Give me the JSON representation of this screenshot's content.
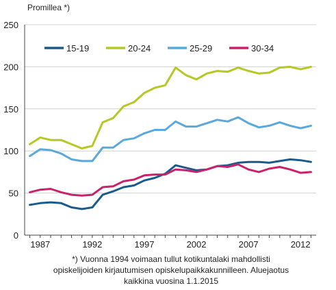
{
  "chart_data": {
    "type": "line",
    "ylabel": "Promillea *)",
    "yticks": [
      0,
      50,
      100,
      150,
      200,
      250
    ],
    "ylim": [
      0,
      250
    ],
    "xlim": [
      1985.5,
      2013.5
    ],
    "xticks": [
      1987,
      1992,
      1997,
      2002,
      2007,
      2012
    ],
    "x": [
      1986,
      1987,
      1988,
      1989,
      1990,
      1991,
      1992,
      1993,
      1994,
      1995,
      1996,
      1997,
      1998,
      1999,
      2000,
      2001,
      2002,
      2003,
      2004,
      2005,
      2006,
      2007,
      2008,
      2009,
      2010,
      2011,
      2012,
      2013
    ],
    "grid": "horizontal",
    "legend_position": "top",
    "series": [
      {
        "name": "15-19",
        "color": "#1a5b8c",
        "values": [
          36,
          38,
          39,
          38,
          33,
          31,
          33,
          48,
          52,
          57,
          59,
          65,
          68,
          73,
          83,
          80,
          77,
          78,
          82,
          83,
          86,
          87,
          87,
          86,
          88,
          90,
          89,
          87
        ]
      },
      {
        "name": "20-24",
        "color": "#b5c823",
        "values": [
          108,
          116,
          113,
          113,
          108,
          103,
          106,
          134,
          139,
          153,
          158,
          169,
          175,
          178,
          199,
          190,
          185,
          192,
          195,
          194,
          199,
          195,
          192,
          193,
          199,
          200,
          197,
          200
        ]
      },
      {
        "name": "25-29",
        "color": "#5aa8dc",
        "values": [
          94,
          102,
          101,
          97,
          90,
          88,
          88,
          104,
          104,
          113,
          115,
          121,
          125,
          125,
          135,
          129,
          129,
          133,
          137,
          135,
          140,
          133,
          128,
          130,
          134,
          130,
          127,
          130
        ]
      },
      {
        "name": "30-34",
        "color": "#c8226b",
        "values": [
          51,
          54,
          55,
          51,
          48,
          47,
          48,
          57,
          58,
          64,
          66,
          71,
          72,
          72,
          78,
          77,
          75,
          78,
          82,
          81,
          84,
          78,
          75,
          79,
          81,
          78,
          74,
          75
        ]
      }
    ]
  },
  "footnote": {
    "line1": "*) Vuonna 1994 voimaan tullut kotikuntalaki mahdollisti",
    "line2": "opiskelijoiden  kirjautumisen opiskelupaikkakunnilleen.  Aluejaotus",
    "line3": "kaikkina vuosina 1.1.2015"
  }
}
